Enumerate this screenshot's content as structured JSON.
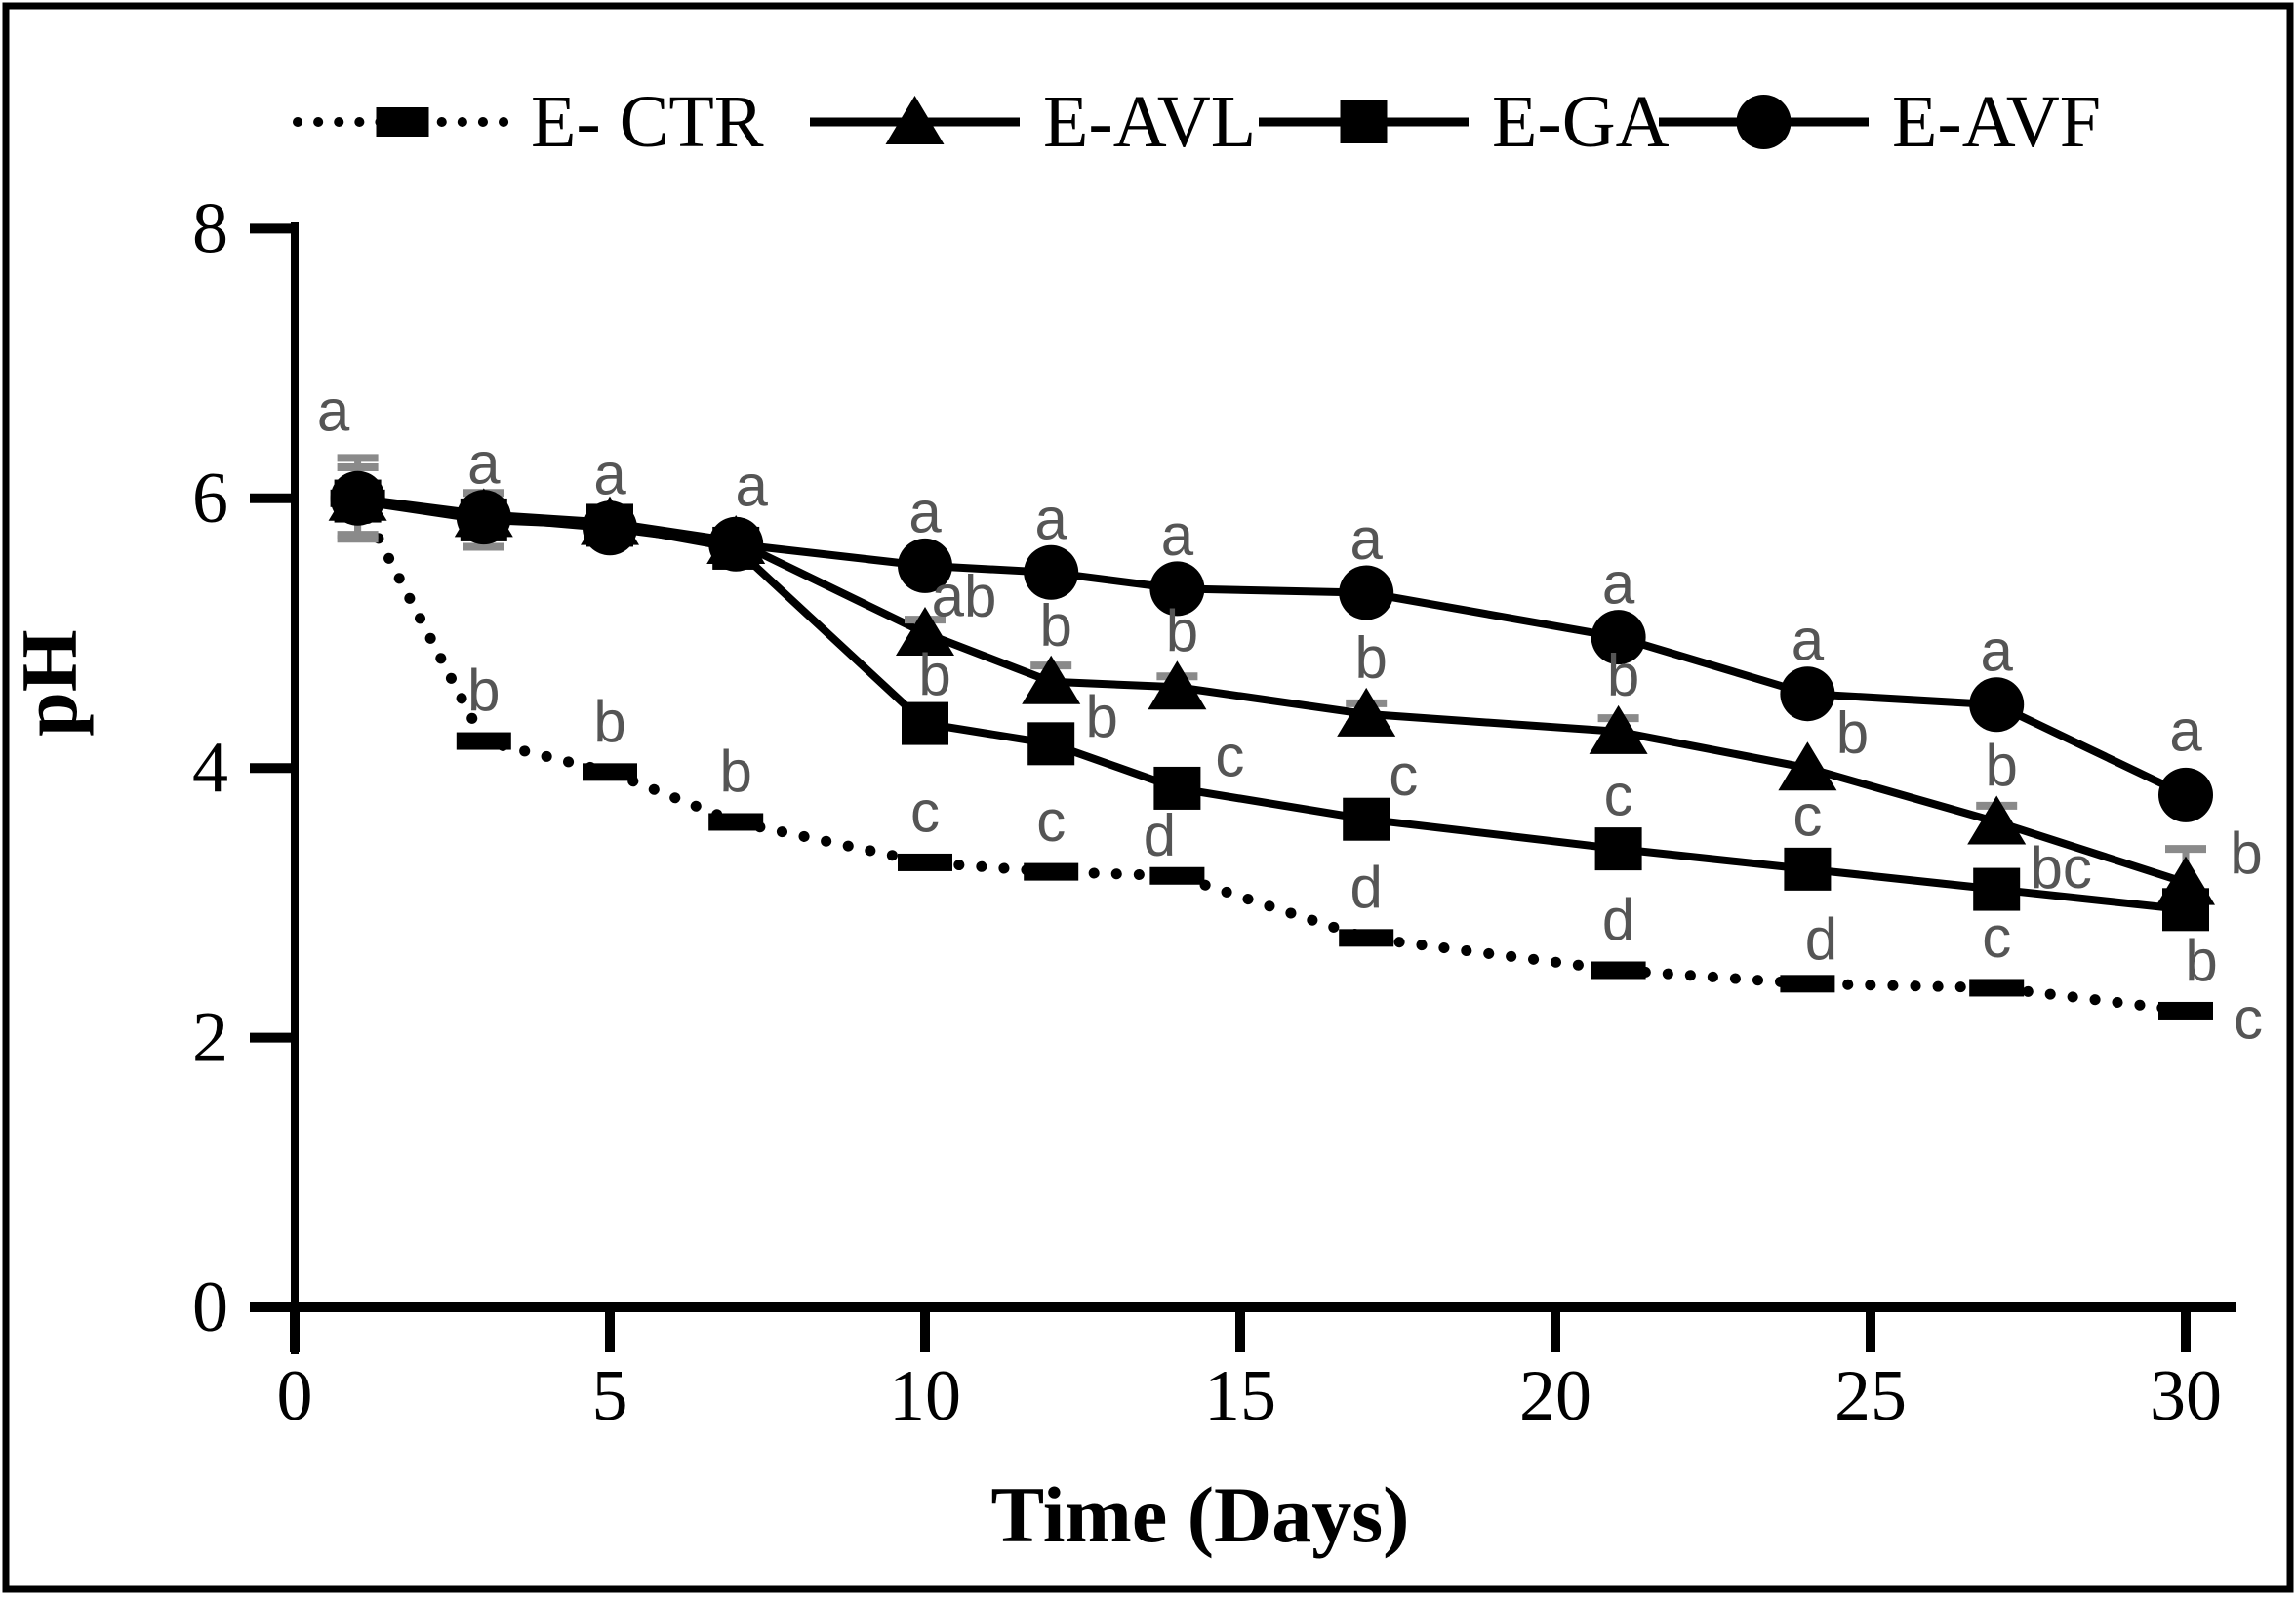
{
  "figure": {
    "background_color": "#ffffff",
    "border_color": "#000000",
    "line_color": "#000000",
    "annotation_color": "#555555",
    "error_bar_color": "#8a8a8a"
  },
  "chart_data": {
    "type": "line",
    "title": "",
    "xlabel": "Time (Days)",
    "ylabel": "pH",
    "xlim": [
      0,
      31
    ],
    "ylim": [
      0,
      8
    ],
    "xticks": [
      0,
      5,
      10,
      15,
      20,
      25,
      30
    ],
    "yticks": [
      0,
      2,
      4,
      6,
      8
    ],
    "grid": false,
    "legend_position": "top",
    "x": [
      1,
      3,
      5,
      7,
      10,
      12,
      14,
      17,
      21,
      24,
      27,
      30
    ],
    "series": [
      {
        "name": "E- CTR",
        "marker": "dash",
        "line_style": "dotted",
        "values": [
          6.0,
          4.2,
          3.97,
          3.6,
          3.3,
          3.23,
          3.2,
          2.74,
          2.5,
          2.4,
          2.37,
          2.2
        ],
        "errors": [
          0.3,
          0,
          0,
          0,
          0,
          0,
          0,
          0,
          0,
          0,
          0,
          0
        ],
        "sig_labels": [
          null,
          "b",
          "b",
          "b",
          "c",
          "c",
          "d",
          "d",
          "d",
          "d",
          "c",
          "c"
        ]
      },
      {
        "name": "E-AVL",
        "marker": "triangle",
        "line_style": "solid",
        "values": [
          6.0,
          5.88,
          5.82,
          5.68,
          5.0,
          4.64,
          4.6,
          4.4,
          4.27,
          4.0,
          3.6,
          3.15
        ],
        "errors": [
          0,
          0,
          0,
          0,
          0.1,
          0.12,
          0.08,
          0.08,
          0.1,
          0,
          0.12,
          0.25
        ],
        "sig_labels": [
          null,
          null,
          null,
          null,
          "ab",
          "b",
          "b",
          "b",
          "b",
          "b",
          "b",
          "b"
        ]
      },
      {
        "name": "E-GA",
        "marker": "square",
        "line_style": "solid",
        "values": [
          5.98,
          5.84,
          5.8,
          5.63,
          4.33,
          4.18,
          3.85,
          3.62,
          3.4,
          3.25,
          3.1,
          2.95
        ],
        "errors": [
          0.25,
          0.2,
          0,
          0,
          0,
          0,
          0,
          0,
          0,
          0.1,
          0,
          0
        ],
        "sig_labels": [
          null,
          null,
          null,
          null,
          "b",
          "b",
          "c",
          "c",
          "c",
          "c",
          "bc",
          "b"
        ]
      },
      {
        "name": "E-AVF",
        "marker": "circle",
        "line_style": "solid",
        "values": [
          6.0,
          5.86,
          5.78,
          5.66,
          5.5,
          5.45,
          5.33,
          5.3,
          4.97,
          4.55,
          4.47,
          3.8
        ],
        "errors": [
          0,
          0,
          0,
          0,
          0,
          0,
          0,
          0,
          0,
          0,
          0,
          0
        ],
        "sig_labels": [
          "a",
          "a",
          "a",
          "a",
          "a",
          "a",
          "a",
          "a",
          "a",
          "a",
          "a",
          "a"
        ]
      }
    ]
  }
}
